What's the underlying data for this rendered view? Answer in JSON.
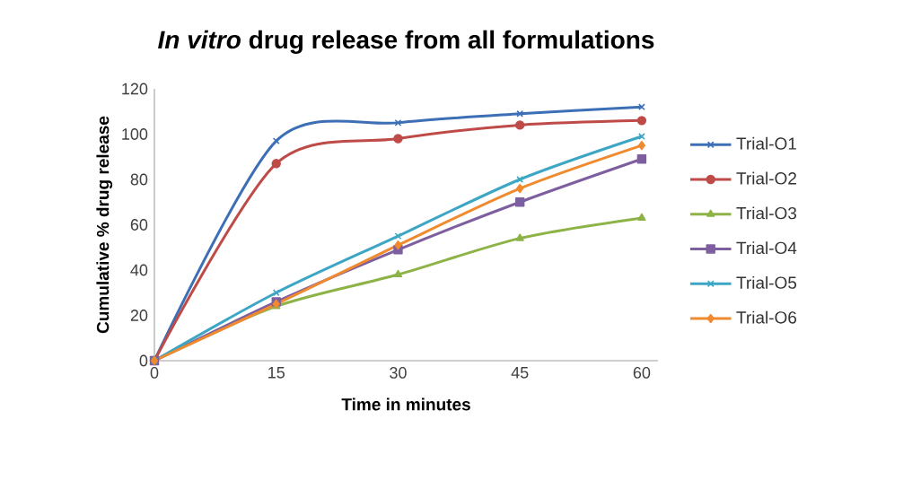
{
  "chart_data": {
    "type": "line",
    "title": "*In vitro* drug release from all formulations",
    "xlabel": "Time in minutes",
    "ylabel": "Cumulative % drug release",
    "x": [
      0,
      15,
      30,
      45,
      60
    ],
    "xlim": [
      0,
      62
    ],
    "xticks": [
      0,
      15,
      30,
      45,
      60
    ],
    "ylim": [
      0,
      120
    ],
    "yticks": [
      0,
      20,
      40,
      60,
      80,
      100,
      120
    ],
    "grid": false,
    "legend": "right",
    "line_style": "solid",
    "series": [
      {
        "name": "Trial-O1",
        "color": "#3d6fb6",
        "marker": "cross",
        "values": [
          0,
          97,
          105,
          109,
          112
        ]
      },
      {
        "name": "Trial-O2",
        "color": "#be4b48",
        "marker": "circle",
        "values": [
          0,
          87,
          98,
          104,
          106
        ]
      },
      {
        "name": "Trial-O3",
        "color": "#8db347",
        "marker": "triangle",
        "values": [
          0,
          24,
          38,
          54,
          63
        ]
      },
      {
        "name": "Trial-O4",
        "color": "#7d5fa0",
        "marker": "square",
        "values": [
          0,
          26,
          49,
          70,
          89
        ]
      },
      {
        "name": "Trial-O5",
        "color": "#3ca6c4",
        "marker": "cross",
        "values": [
          0,
          30,
          55,
          80,
          99
        ]
      },
      {
        "name": "Trial-O6",
        "color": "#f08a2e",
        "marker": "diamond",
        "values": [
          0,
          25,
          51,
          76,
          95
        ]
      }
    ]
  }
}
